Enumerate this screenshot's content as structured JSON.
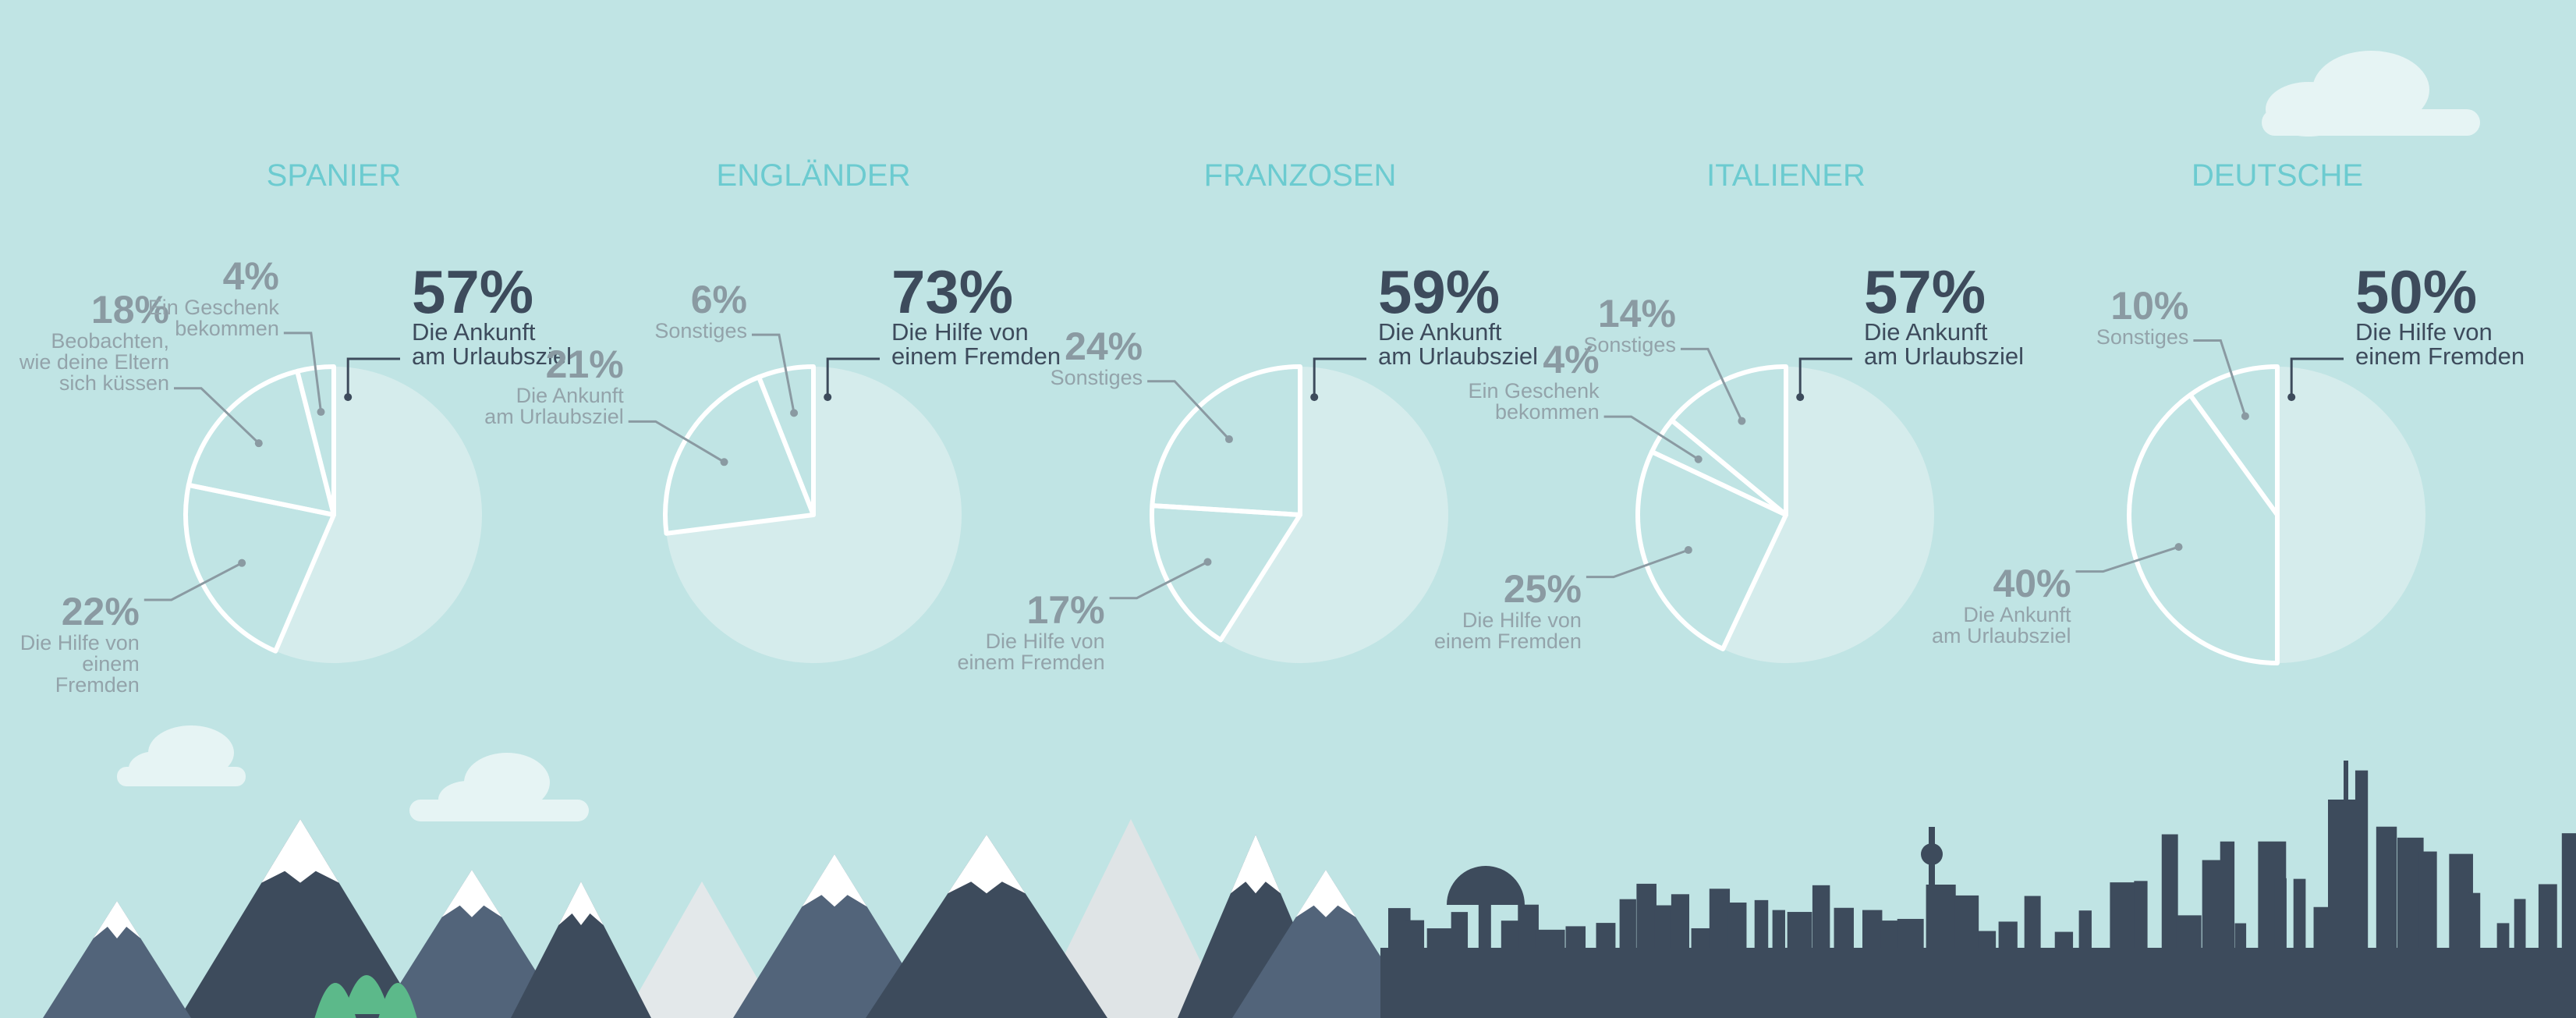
{
  "chart_data": [
    {
      "type": "pie",
      "title": "SPANIER",
      "color": "#d5ecec",
      "values": [
        57,
        22,
        18,
        4
      ],
      "value_labels": [
        "57%",
        "22%",
        "18%",
        "4%"
      ],
      "labels": [
        "Die Ankunft\nam Urlaubsziel",
        "Die Hilfe von\neinem Fremden",
        "Beobachten,\nwie deine Eltern\nsich küssen",
        "Ein Geschenk\nbekommen"
      ]
    },
    {
      "type": "pie",
      "title": "ENGLÄNDER",
      "color": "#d5ecec",
      "values": [
        73,
        21,
        6
      ],
      "value_labels": [
        "73%",
        "21%",
        "6%"
      ],
      "labels": [
        "Die Hilfe von\neinem Fremden",
        "Die Ankunft\nam Urlaubsziel",
        "Sonstiges"
      ]
    },
    {
      "type": "pie",
      "title": "FRANZOSEN",
      "color": "#d5ecec",
      "values": [
        59,
        17,
        24
      ],
      "value_labels": [
        "59%",
        "17%",
        "24%"
      ],
      "labels": [
        "Die Ankunft\nam Urlaubsziel",
        "Die Hilfe von\neinem Fremden",
        "Sonstiges"
      ]
    },
    {
      "type": "pie",
      "title": "ITALIENER",
      "color": "#d5ecec",
      "values": [
        57,
        25,
        4,
        14
      ],
      "value_labels": [
        "57%",
        "25%",
        "4%",
        "14%"
      ],
      "labels": [
        "Die Ankunft\nam Urlaubsziel",
        "Die Hilfe von\neinem Fremden",
        "Ein Geschenk\nbekommen",
        "Sonstiges"
      ]
    },
    {
      "type": "pie",
      "title": "DEUTSCHE",
      "color": "#d5ecec",
      "values": [
        50,
        40,
        10
      ],
      "value_labels": [
        "50%",
        "40%",
        "10%"
      ],
      "labels": [
        "Die Hilfe von\neinem Fremden",
        "Die Ankunft\nam Urlaubsziel",
        "Sonstiges"
      ]
    }
  ]
}
